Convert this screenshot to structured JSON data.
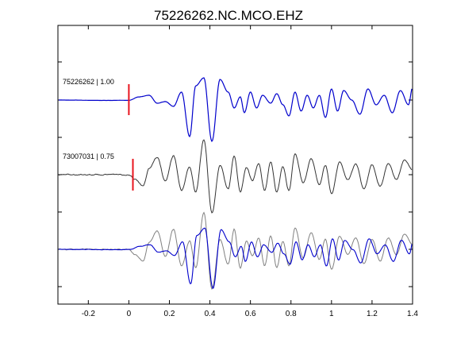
{
  "chart_data": {
    "type": "line",
    "title": "75226262.NC.MCO.EHZ",
    "xlabel": "",
    "ylabel": "",
    "xlim": [
      -0.35,
      1.4
    ],
    "x_ticks": [
      -0.2,
      0,
      0.2,
      0.4,
      0.6,
      0.8,
      1,
      1.2,
      1.4
    ],
    "x_tick_labels": [
      "-0.2",
      "0",
      "0.2",
      "0.4",
      "0.6",
      "0.8",
      "1",
      "1.2",
      "1.4"
    ],
    "grid": false,
    "legend": "none",
    "colors": {
      "primary": "#0000cc",
      "secondary": "#333333",
      "overlay_gray": "#808080",
      "pick": "#e8141e"
    },
    "traces": [
      {
        "label": "75226262 | 1.00",
        "event_id": "75226262",
        "correlation": 1.0,
        "color": "#0000cc",
        "pick_time": 0.0
      },
      {
        "label": "73007031 | 0.75",
        "event_id": "73007031",
        "correlation": 0.75,
        "color": "#333333",
        "pick_time": 0.02
      },
      {
        "label": "",
        "overlay": true,
        "colors": [
          "#808080",
          "#0000cc"
        ]
      }
    ]
  }
}
